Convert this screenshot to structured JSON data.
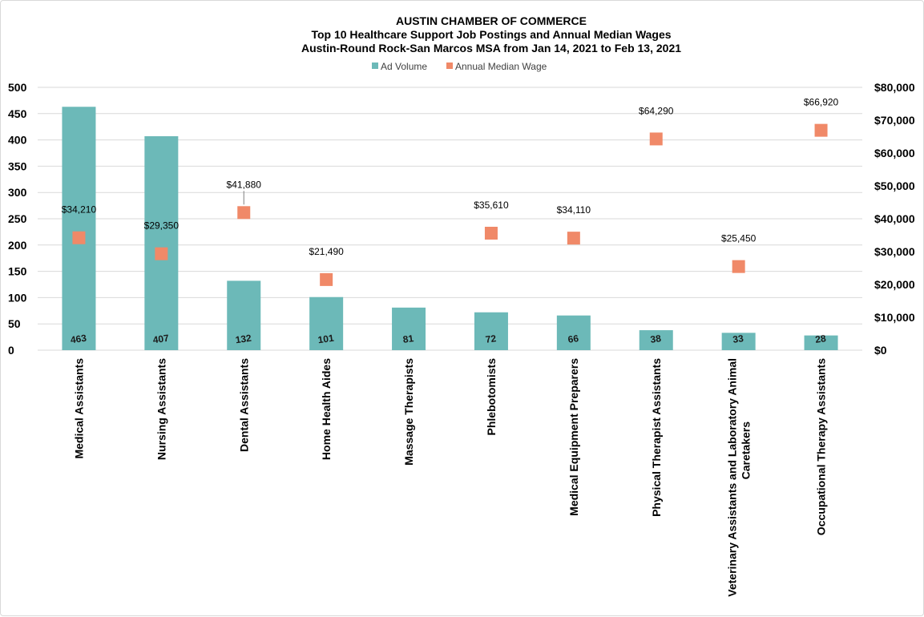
{
  "chart_data": {
    "type": "bar",
    "title_lines": [
      "AUSTIN CHAMBER OF COMMERCE",
      "Top 10 Healthcare Support Job Postings and Annual  Median Wages",
      "Austin-Round Rock-San Marcos MSA from Jan 14, 2021 to Feb 13, 2021"
    ],
    "categories": [
      "Medical Assistants",
      "Nursing Assistants",
      "Dental Assistants",
      "Home Health Aides",
      "Massage Therapists",
      "Phlebotomists",
      "Medical Equipment Preparers",
      "Physical Therapist Assistants",
      "Veterinary Assistants and Laboratory Animal Caretakers",
      "Occupational Therapy Assistants"
    ],
    "series": [
      {
        "name": "Ad Volume",
        "kind": "bar",
        "axis": "left",
        "color": "#6cb9b8",
        "values": [
          463,
          407,
          132,
          101,
          81,
          72,
          66,
          38,
          33,
          28
        ],
        "labels": [
          "463",
          "407",
          "132",
          "101",
          "81",
          "72",
          "66",
          "38",
          "33",
          "28"
        ]
      },
      {
        "name": "Annual Median Wage",
        "kind": "scatter",
        "axis": "right",
        "color": "#f08968",
        "values": [
          34210,
          29350,
          41880,
          21490,
          null,
          35610,
          34110,
          64290,
          25450,
          66920
        ],
        "labels": [
          "$34,210",
          "$29,350",
          "$41,880",
          "$21,490",
          "",
          "$35,610",
          "$34,110",
          "$64,290",
          "$25,450",
          "$66,920"
        ]
      }
    ],
    "y_left": {
      "range": [
        0,
        500
      ],
      "ticks": [
        0,
        50,
        100,
        150,
        200,
        250,
        300,
        350,
        400,
        450,
        500
      ],
      "tick_labels": [
        "0",
        "50",
        "100",
        "150",
        "200",
        "250",
        "300",
        "350",
        "400",
        "450",
        "500"
      ]
    },
    "y_right": {
      "range": [
        0,
        80000
      ],
      "ticks": [
        0,
        10000,
        20000,
        30000,
        40000,
        50000,
        60000,
        70000,
        80000
      ],
      "tick_labels": [
        "$0",
        "$10,000",
        "$20,000",
        "$30,000",
        "$40,000",
        "$50,000",
        "$60,000",
        "$70,000",
        "$80,000"
      ]
    },
    "grid": true,
    "legend_position": "top-center"
  }
}
